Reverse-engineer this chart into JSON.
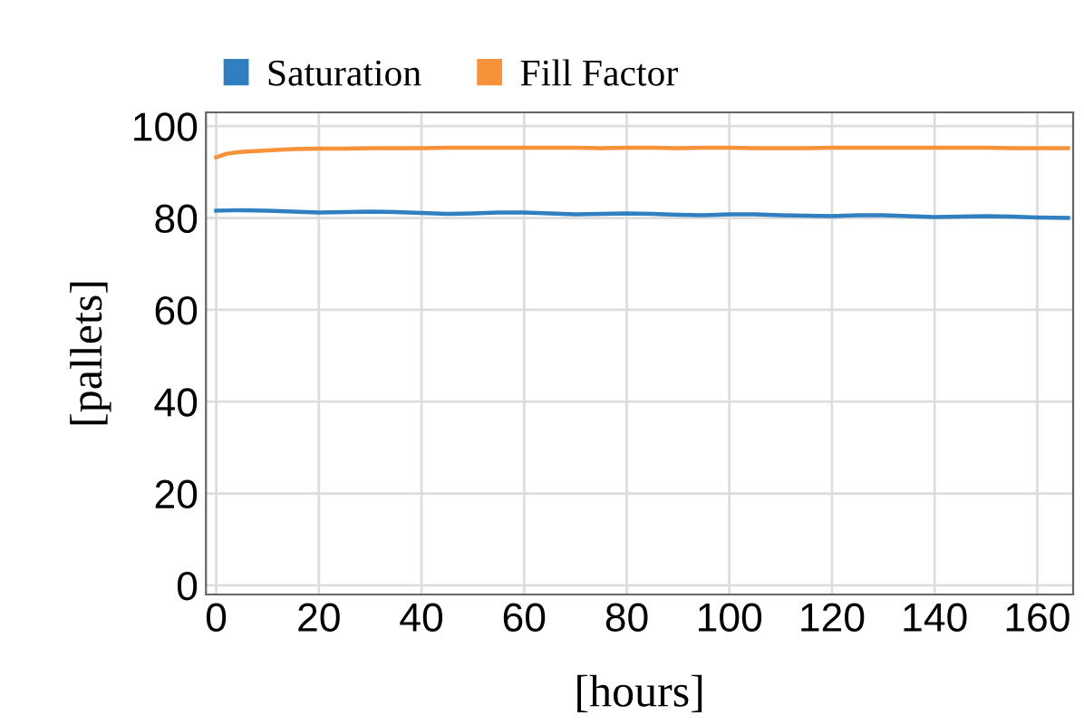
{
  "chart_data": {
    "type": "line",
    "xlabel": "[hours]",
    "ylabel": "[pallets]",
    "xlim": [
      -2,
      167
    ],
    "ylim": [
      -2,
      103
    ],
    "xticks": [
      0,
      20,
      40,
      60,
      80,
      100,
      120,
      140,
      160
    ],
    "yticks": [
      0,
      20,
      40,
      60,
      80,
      100
    ],
    "grid": true,
    "legend": "top",
    "marker": "none",
    "line_style": "solid",
    "series": [
      {
        "name": "Saturation",
        "color": "#2f7fc1",
        "x": [
          0,
          5,
          10,
          15,
          20,
          25,
          30,
          35,
          40,
          45,
          50,
          55,
          60,
          65,
          70,
          75,
          80,
          85,
          90,
          95,
          100,
          105,
          110,
          115,
          120,
          125,
          130,
          135,
          140,
          145,
          150,
          155,
          160,
          166
        ],
        "values": [
          81.6,
          81.7,
          81.6,
          81.4,
          81.2,
          81.3,
          81.4,
          81.3,
          81.1,
          80.9,
          81.0,
          81.2,
          81.2,
          81.0,
          80.8,
          80.9,
          81.0,
          80.9,
          80.7,
          80.6,
          80.8,
          80.8,
          80.6,
          80.5,
          80.4,
          80.6,
          80.6,
          80.4,
          80.2,
          80.3,
          80.4,
          80.3,
          80.1,
          80.0
        ]
      },
      {
        "name": "Fill Factor",
        "color": "#f7923a",
        "x": [
          0,
          2,
          5,
          10,
          15,
          20,
          25,
          30,
          35,
          40,
          45,
          50,
          55,
          60,
          65,
          70,
          75,
          80,
          85,
          90,
          95,
          100,
          105,
          110,
          115,
          120,
          125,
          130,
          135,
          140,
          145,
          150,
          155,
          160,
          166
        ],
        "values": [
          93.2,
          94.0,
          94.4,
          94.7,
          95.0,
          95.1,
          95.1,
          95.2,
          95.2,
          95.2,
          95.3,
          95.3,
          95.3,
          95.3,
          95.3,
          95.3,
          95.2,
          95.3,
          95.3,
          95.2,
          95.3,
          95.3,
          95.2,
          95.2,
          95.2,
          95.3,
          95.3,
          95.3,
          95.3,
          95.3,
          95.3,
          95.3,
          95.2,
          95.2,
          95.2
        ]
      }
    ]
  }
}
